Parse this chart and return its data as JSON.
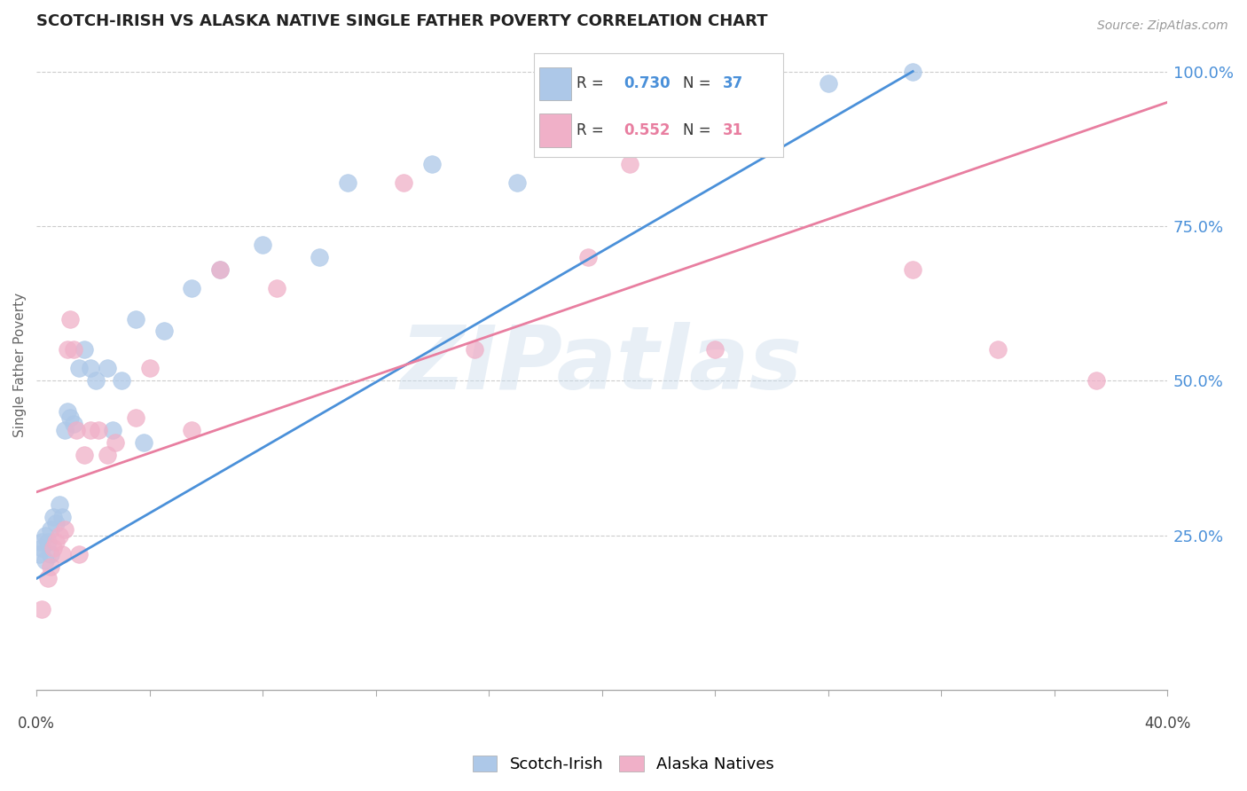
{
  "title": "SCOTCH-IRISH VS ALASKA NATIVE SINGLE FATHER POVERTY CORRELATION CHART",
  "source": "Source: ZipAtlas.com",
  "ylabel": "Single Father Poverty",
  "ytick_labels": [
    "25.0%",
    "50.0%",
    "75.0%",
    "100.0%"
  ],
  "ytick_values": [
    0.25,
    0.5,
    0.75,
    1.0
  ],
  "xmin": 0.0,
  "xmax": 0.4,
  "ymin": 0.0,
  "ymax": 1.05,
  "watermark_text": "ZIPatlas",
  "blue_color": "#adc8e8",
  "pink_color": "#f0b0c8",
  "line_blue": "#4a90d9",
  "line_pink": "#e87ea0",
  "legend_blue_r": "0.730",
  "legend_blue_n": "37",
  "legend_pink_r": "0.552",
  "legend_pink_n": "31",
  "scotch_irish_x": [
    0.001,
    0.002,
    0.002,
    0.003,
    0.003,
    0.004,
    0.005,
    0.005,
    0.006,
    0.007,
    0.008,
    0.009,
    0.01,
    0.011,
    0.012,
    0.013,
    0.015,
    0.017,
    0.019,
    0.021,
    0.025,
    0.027,
    0.03,
    0.035,
    0.038,
    0.045,
    0.055,
    0.065,
    0.08,
    0.1,
    0.11,
    0.14,
    0.17,
    0.195,
    0.22,
    0.28,
    0.31
  ],
  "scotch_irish_y": [
    0.22,
    0.23,
    0.24,
    0.21,
    0.25,
    0.24,
    0.22,
    0.26,
    0.28,
    0.27,
    0.3,
    0.28,
    0.42,
    0.45,
    0.44,
    0.43,
    0.52,
    0.55,
    0.52,
    0.5,
    0.52,
    0.42,
    0.5,
    0.6,
    0.4,
    0.58,
    0.65,
    0.68,
    0.72,
    0.7,
    0.82,
    0.85,
    0.82,
    0.88,
    0.95,
    0.98,
    1.0
  ],
  "alaska_native_x": [
    0.002,
    0.004,
    0.005,
    0.006,
    0.007,
    0.008,
    0.009,
    0.01,
    0.011,
    0.012,
    0.013,
    0.014,
    0.015,
    0.017,
    0.019,
    0.022,
    0.025,
    0.028,
    0.035,
    0.04,
    0.055,
    0.065,
    0.085,
    0.13,
    0.155,
    0.195,
    0.21,
    0.24,
    0.31,
    0.34,
    0.375
  ],
  "alaska_native_y": [
    0.13,
    0.18,
    0.2,
    0.23,
    0.24,
    0.25,
    0.22,
    0.26,
    0.55,
    0.6,
    0.55,
    0.42,
    0.22,
    0.38,
    0.42,
    0.42,
    0.38,
    0.4,
    0.44,
    0.52,
    0.42,
    0.68,
    0.65,
    0.82,
    0.55,
    0.7,
    0.85,
    0.55,
    0.68,
    0.55,
    0.5
  ],
  "blue_line_x0": 0.0,
  "blue_line_y0": 0.18,
  "blue_line_x1": 0.31,
  "blue_line_y1": 1.0,
  "pink_line_x0": 0.0,
  "pink_line_y0": 0.32,
  "pink_line_x1": 0.4,
  "pink_line_y1": 0.95
}
